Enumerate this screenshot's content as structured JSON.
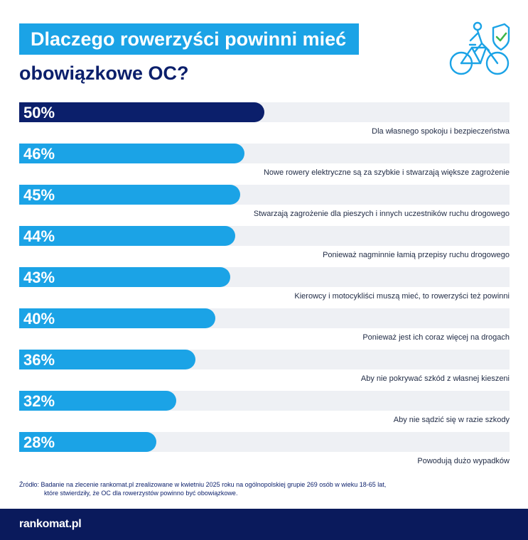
{
  "title_line1": "Dlaczego rowerzyści powinni mieć",
  "title_line2": "obowiązkowe OC?",
  "chart_data": {
    "type": "bar",
    "orientation": "horizontal",
    "title": "Dlaczego rowerzyści powinni mieć obowiązkowe OC?",
    "xlim": [
      0,
      100
    ],
    "unit": "%",
    "categories": [
      "Dla własnego spokoju i bezpieczeństwa",
      "Nowe rowery elektryczne są za szybkie i stwarzają większe zagrożenie",
      "Stwarzają zagrożenie dla pieszych i innych uczestników ruchu drogowego",
      "Ponieważ nagminnie łamią przepisy ruchu drogowego",
      "Kierowcy i motocykliści muszą mieć, to rowerzyści też powinni",
      "Ponieważ jest ich coraz więcej na drogach",
      "Aby nie pokrywać szkód z własnej kieszeni",
      "Aby nie sądzić się w razie szkody",
      "Powodują dużo wypadków"
    ],
    "values": [
      50,
      46,
      45,
      44,
      43,
      40,
      36,
      32,
      28
    ],
    "value_labels": [
      "50%",
      "46%",
      "45%",
      "44%",
      "43%",
      "40%",
      "36%",
      "32%",
      "28%"
    ],
    "colors": {
      "highlight": "#0b1f6b",
      "bar": "#1ba3e6",
      "track": "#eef0f4"
    }
  },
  "source": {
    "line1": "Źródło: Badanie na zlecenie rankomat.pl zrealizowane w kwietniu 2025 roku na ogólnopolskiej grupie 269 osób w wieku 18-65 lat,",
    "line2": "które stwierdziły, że OC dla rowerzystów powinno być obowiązkowe."
  },
  "footer": {
    "logo_text": "rankomat.pl"
  },
  "icons": {
    "header_icon": "bicycle-shield-icon"
  }
}
